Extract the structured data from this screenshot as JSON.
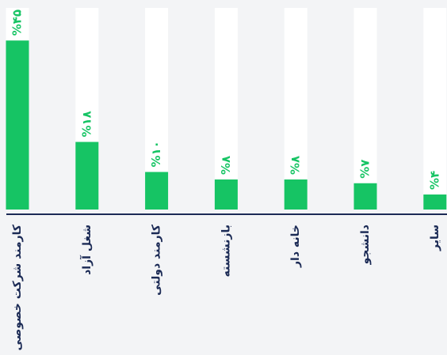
{
  "chart_data": {
    "type": "bar",
    "categories": [
      "کارمند شرکت خصوصی",
      "شغل آزاد",
      "کارمند دولتی",
      "بازنشسته",
      "خانه دار",
      "دانشجو",
      "سایر"
    ],
    "values": [
      45,
      18,
      10,
      8,
      8,
      7,
      4
    ],
    "value_labels": [
      "%۴۵",
      "%۱۸",
      "%۱۰",
      "%۸",
      "%۸",
      "%۷",
      "%۴"
    ],
    "color": "#16c464"
  }
}
